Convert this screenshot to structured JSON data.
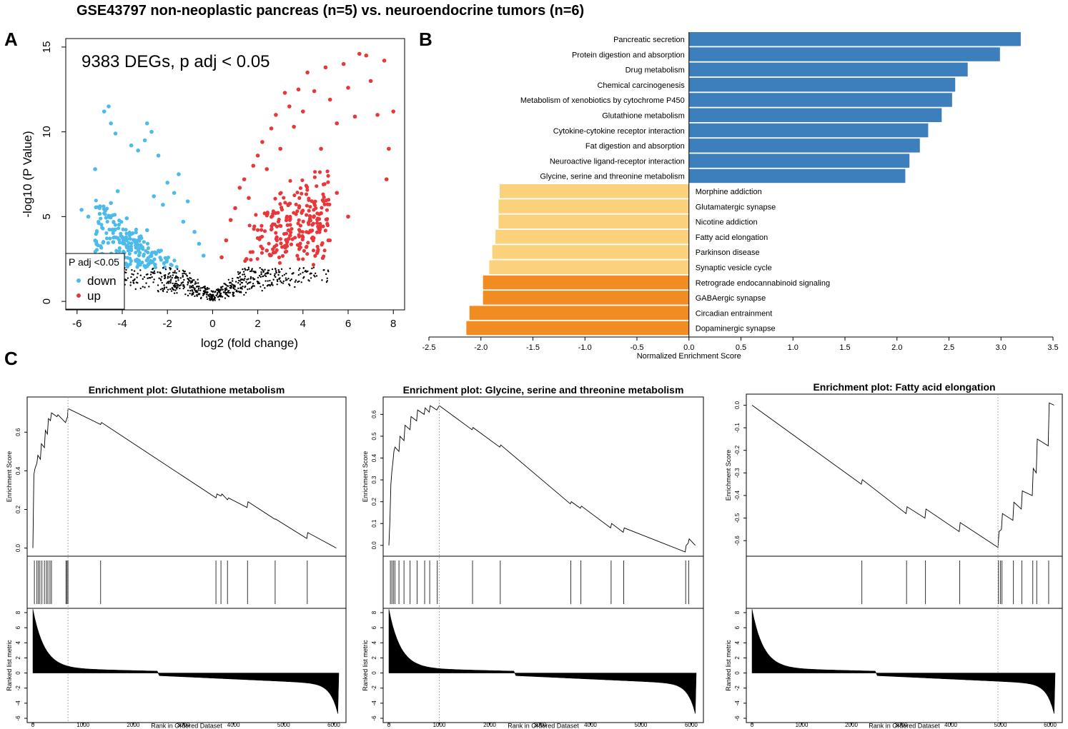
{
  "figure": {
    "title": "GSE43797 non-neoplastic pancreas (n=5) vs. neuroendocrine tumors (n=6)",
    "panel_letters": [
      "A",
      "B",
      "C"
    ]
  },
  "colors": {
    "down": "#4dbbea",
    "up": "#e8373b",
    "ns": "#000000",
    "pos_bar": "#3d7fbc",
    "neg_bar_light": "#fbd27b",
    "neg_bar_dark": "#f08c22"
  },
  "chart_data": [
    {
      "id": "volcano",
      "type": "scatter",
      "title": "",
      "annotation": "9383 DEGs, p adj < 0.05",
      "xlabel": "log2 (fold change)",
      "ylabel": "-log10 (P Value)",
      "xlim": [
        -6.5,
        8.5
      ],
      "ylim": [
        -0.5,
        15.5
      ],
      "xticks": [
        -6,
        -4,
        -2,
        0,
        2,
        4,
        6,
        8
      ],
      "yticks": [
        0,
        5,
        10,
        15
      ],
      "legend": {
        "title": "P adj <0.05",
        "entries": [
          "down",
          "up"
        ],
        "placement": "bottom-left"
      },
      "significance_threshold": 2.0,
      "series": [
        {
          "name": "down",
          "points": [
            [
              -5.8,
              5.4
            ],
            [
              -5.5,
              5.0
            ],
            [
              -5.2,
              7.8
            ],
            [
              -4.8,
              11.2
            ],
            [
              -4.6,
              11.5
            ],
            [
              -4.5,
              10.5
            ],
            [
              -4.3,
              9.9
            ],
            [
              -4.2,
              6.5
            ],
            [
              -4.0,
              3.8
            ],
            [
              -3.8,
              4.9
            ],
            [
              -3.6,
              9.2
            ],
            [
              -3.3,
              8.9
            ],
            [
              -3.0,
              9.5
            ],
            [
              -2.9,
              10.5
            ],
            [
              -2.7,
              10.0
            ],
            [
              -2.6,
              6.2
            ],
            [
              -2.4,
              8.6
            ],
            [
              -2.2,
              5.7
            ],
            [
              -2.0,
              7.0
            ],
            [
              -1.7,
              6.4
            ],
            [
              -1.5,
              7.5
            ],
            [
              -1.3,
              4.7
            ],
            [
              -1.1,
              5.9
            ],
            [
              -0.8,
              4.1
            ],
            [
              -0.6,
              3.4
            ],
            [
              -0.4,
              2.7
            ],
            [
              -2.9,
              4.2
            ],
            [
              -3.4,
              3.3
            ],
            [
              -3.9,
              2.6
            ],
            [
              -4.4,
              3.5
            ],
            [
              -4.9,
              2.8
            ],
            [
              -4.5,
              5.8
            ]
          ]
        },
        {
          "name": "up",
          "points": [
            [
              0.4,
              2.6
            ],
            [
              0.6,
              3.6
            ],
            [
              0.8,
              4.8
            ],
            [
              1.0,
              5.5
            ],
            [
              1.2,
              6.7
            ],
            [
              1.4,
              7.2
            ],
            [
              1.6,
              6.1
            ],
            [
              1.8,
              8.0
            ],
            [
              2.0,
              8.6
            ],
            [
              2.2,
              9.4
            ],
            [
              2.4,
              7.8
            ],
            [
              2.6,
              10.2
            ],
            [
              2.8,
              11.0
            ],
            [
              3.0,
              9.0
            ],
            [
              3.2,
              12.3
            ],
            [
              3.4,
              11.5
            ],
            [
              3.6,
              10.3
            ],
            [
              3.8,
              12.5
            ],
            [
              4.0,
              11.2
            ],
            [
              4.2,
              13.5
            ],
            [
              4.5,
              12.4
            ],
            [
              4.8,
              9.0
            ],
            [
              5.0,
              13.8
            ],
            [
              5.2,
              11.9
            ],
            [
              5.5,
              10.5
            ],
            [
              5.8,
              14.0
            ],
            [
              6.0,
              12.6
            ],
            [
              6.3,
              10.9
            ],
            [
              6.5,
              14.6
            ],
            [
              6.8,
              14.5
            ],
            [
              7.0,
              13.0
            ],
            [
              7.3,
              11.0
            ],
            [
              7.6,
              14.2
            ],
            [
              7.8,
              9.0
            ],
            [
              8.0,
              11.2
            ],
            [
              7.7,
              7.2
            ],
            [
              6.0,
              5.0
            ],
            [
              5.5,
              6.4
            ],
            [
              4.8,
              5.2
            ],
            [
              3.3,
              3.5
            ],
            [
              2.4,
              3.0
            ],
            [
              1.5,
              2.5
            ]
          ]
        }
      ]
    },
    {
      "id": "nes",
      "type": "bar",
      "orientation": "horizontal",
      "title": "",
      "xlabel": "Normalized Enrichment Score",
      "ylabel": "",
      "xlim": [
        -2.5,
        3.5
      ],
      "xticks": [
        -2.5,
        -2.0,
        -1.5,
        -1.0,
        -0.5,
        0.0,
        0.5,
        1.0,
        1.5,
        2.0,
        2.5,
        3.0,
        3.5
      ],
      "xtick_labels": [
        "-2.5",
        "-2.0",
        "-1.5",
        "-1.0",
        "-0.5",
        "0.0",
        "0.5",
        "1.0",
        "1.5",
        "2.0",
        "2.5",
        "3.0",
        "3.5"
      ],
      "categories": [
        "Pancreatic secretion",
        "Protein digestion and absorption",
        "Drug metabolism",
        "Chemical carcinogenesis",
        "Metabolism of xenobiotics by cytochrome P450",
        "Glutathione metabolism",
        "Cytokine-cytokine receptor interaction",
        "Fat digestion and absorption",
        "Neuroactive ligand-receptor interaction",
        "Glycine, serine and threonine metabolism",
        "Morphine addiction",
        "Glutamatergic synapse",
        "Nicotine addiction",
        "Fatty acid elongation",
        "Parkinson disease",
        "Synaptic vesicle cycle",
        "Retrograde endocannabinoid signaling",
        "GABAergic synapse",
        "Circadian entrainment",
        "Dopaminergic synapse"
      ],
      "values": [
        3.19,
        2.99,
        2.68,
        2.56,
        2.53,
        2.43,
        2.3,
        2.22,
        2.12,
        2.08,
        -1.82,
        -1.83,
        -1.83,
        -1.86,
        -1.89,
        -1.92,
        -1.98,
        -1.98,
        -2.11,
        -2.14
      ]
    },
    {
      "id": "gsea-1",
      "type": "line",
      "title": "Enrichment plot: Glutathione metabolism",
      "ylabel": "Enrichment Score",
      "ylabel_bottom": "Ranked list metric",
      "xlabel": "Rank in Ordered Dataset",
      "xlim": [
        0,
        6100
      ],
      "ylim": [
        -0.02,
        0.76
      ],
      "yticks": [
        0.0,
        0.2,
        0.4,
        0.6
      ],
      "ytick_labels": [
        "0.0",
        "0.2",
        "0.4",
        "0.6"
      ],
      "xticks": [
        0,
        1000,
        2000,
        3000,
        4000,
        5000,
        6000
      ],
      "xtick_labels": [
        "0",
        "1000",
        "2000",
        "3000",
        "4000",
        "5000",
        "6000"
      ],
      "metric_ylim": [
        -6,
        8
      ],
      "metric_yticks": [
        -6,
        -4,
        -2,
        0,
        2,
        4,
        6,
        8
      ],
      "metric_ytick_labels": [
        "-6",
        "-4",
        "-2",
        "0",
        "2",
        "4",
        "6",
        "8"
      ],
      "peak_rank": 700,
      "x": [
        0,
        20,
        40,
        80,
        100,
        150,
        170,
        230,
        250,
        290,
        310,
        350,
        370,
        480,
        500,
        650,
        690,
        700,
        720,
        1350,
        1370,
        3650,
        3670,
        3750,
        3770,
        3880,
        3900,
        4270,
        4290,
        4820,
        4840,
        5460,
        5480,
        6050
      ],
      "y": [
        0.0,
        0.38,
        0.41,
        0.44,
        0.48,
        0.46,
        0.54,
        0.52,
        0.61,
        0.59,
        0.67,
        0.66,
        0.7,
        0.68,
        0.69,
        0.65,
        0.68,
        0.72,
        0.72,
        0.64,
        0.65,
        0.26,
        0.28,
        0.27,
        0.28,
        0.25,
        0.26,
        0.21,
        0.24,
        0.15,
        0.15,
        0.05,
        0.08,
        0.0
      ],
      "hits": [
        30,
        80,
        110,
        140,
        180,
        230,
        270,
        300,
        340,
        370,
        660,
        680,
        700,
        1350,
        3650,
        3750,
        3880,
        4280,
        4830,
        5470
      ]
    },
    {
      "id": "gsea-2",
      "type": "line",
      "title": "Enrichment plot: Glycine, serine and threonine metabolism",
      "ylabel": "Enrichment Score",
      "ylabel_bottom": "Ranked list metric",
      "xlabel": "Rank in Ordered Dataset",
      "xlim": [
        0,
        6100
      ],
      "ylim": [
        -0.03,
        0.66
      ],
      "yticks": [
        0.0,
        0.1,
        0.2,
        0.3,
        0.4,
        0.5,
        0.6
      ],
      "ytick_labels": [
        "0.0",
        "0.1",
        "0.2",
        "0.3",
        "0.4",
        "0.5",
        "0.6"
      ],
      "xticks": [
        0,
        1000,
        2000,
        3000,
        4000,
        5000,
        6000
      ],
      "xtick_labels": [
        "0",
        "1000",
        "2000",
        "3000",
        "4000",
        "5000",
        "6000"
      ],
      "metric_ylim": [
        -6,
        8
      ],
      "metric_yticks": [
        -6,
        -4,
        -2,
        0,
        2,
        4,
        6,
        8
      ],
      "metric_ytick_labels": [
        "-6",
        "-4",
        "-2",
        "0",
        "2",
        "4",
        "6",
        "8"
      ],
      "peak_rank": 1000,
      "x": [
        0,
        20,
        40,
        60,
        80,
        100,
        120,
        200,
        220,
        300,
        320,
        420,
        440,
        550,
        570,
        700,
        720,
        800,
        820,
        950,
        1000,
        1650,
        1670,
        2200,
        2220,
        3600,
        3620,
        3800,
        3820,
        4400,
        4420,
        4650,
        4670,
        5880,
        5900,
        5940,
        5960,
        6080
      ],
      "y": [
        0.0,
        0.11,
        0.28,
        0.34,
        0.38,
        0.43,
        0.45,
        0.43,
        0.5,
        0.48,
        0.55,
        0.53,
        0.59,
        0.57,
        0.62,
        0.6,
        0.63,
        0.61,
        0.64,
        0.62,
        0.64,
        0.53,
        0.54,
        0.45,
        0.46,
        0.19,
        0.2,
        0.17,
        0.18,
        0.08,
        0.1,
        0.06,
        0.08,
        -0.03,
        0.0,
        0.01,
        0.03,
        0.0
      ],
      "hits": [
        30,
        60,
        90,
        120,
        200,
        300,
        420,
        560,
        710,
        810,
        960,
        1660,
        2210,
        3610,
        3810,
        4410,
        4660,
        5890,
        5950
      ]
    },
    {
      "id": "gsea-3",
      "type": "line",
      "title": "Enrichment plot: Fatty acid elongation",
      "ylabel": "Enrichment Score",
      "ylabel_bottom": "Ranked list metric",
      "xlabel": "Rank in Ordered Dataset",
      "xlim": [
        0,
        6100
      ],
      "ylim": [
        -0.65,
        0.03
      ],
      "yticks": [
        0.0,
        -0.1,
        -0.2,
        -0.3,
        -0.4,
        -0.5,
        -0.6
      ],
      "ytick_labels": [
        "0.0",
        "-0.1",
        "-0.2",
        "-0.3",
        "-0.4",
        "-0.5",
        "-0.6"
      ],
      "xticks": [
        0,
        1000,
        2000,
        3000,
        4000,
        5000,
        6000
      ],
      "xtick_labels": [
        "0",
        "1000",
        "2000",
        "3000",
        "4000",
        "5000",
        "6000"
      ],
      "metric_ylim": [
        -6,
        8
      ],
      "metric_yticks": [
        -6,
        -4,
        -2,
        0,
        2,
        4,
        6,
        8
      ],
      "metric_ytick_labels": [
        "-6",
        "-4",
        "-2",
        "0",
        "2",
        "4",
        "6",
        "8"
      ],
      "peak_rank": 4950,
      "x": [
        0,
        2200,
        2220,
        3100,
        3120,
        3480,
        3500,
        4170,
        4190,
        4950,
        4970,
        5020,
        5040,
        5250,
        5270,
        5420,
        5440,
        5640,
        5660,
        5720,
        5740,
        5960,
        5980,
        6080
      ],
      "y": [
        0.0,
        -0.35,
        -0.33,
        -0.48,
        -0.45,
        -0.5,
        -0.46,
        -0.56,
        -0.52,
        -0.63,
        -0.56,
        -0.55,
        -0.48,
        -0.51,
        -0.43,
        -0.46,
        -0.38,
        -0.4,
        -0.28,
        -0.3,
        -0.15,
        -0.18,
        0.01,
        0.0
      ],
      "hits": [
        2210,
        3110,
        3490,
        4180,
        4960,
        5000,
        5030,
        5260,
        5430,
        5650,
        5730,
        5970
      ]
    }
  ]
}
